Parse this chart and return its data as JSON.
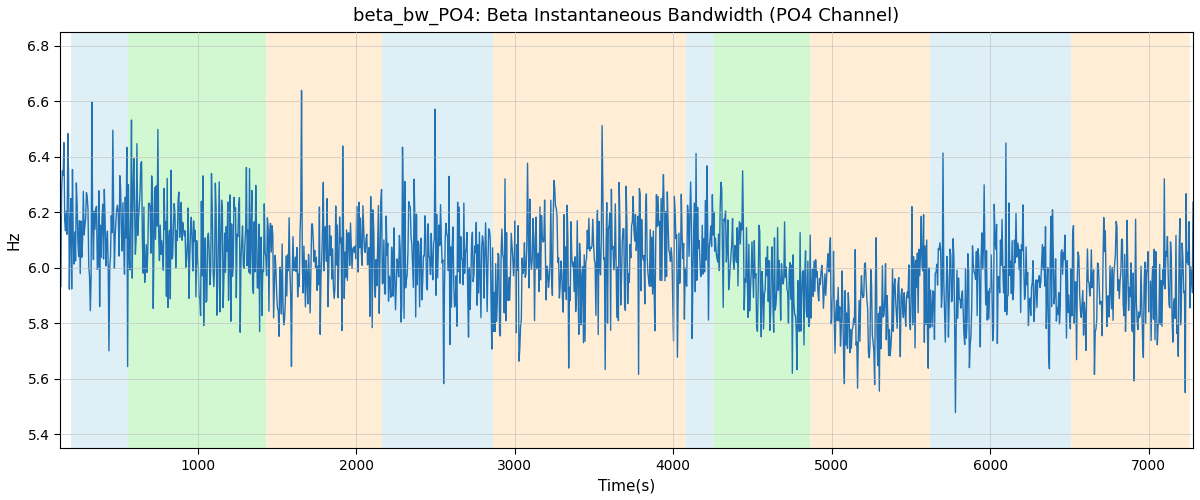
{
  "title": "beta_bw_PO4: Beta Instantaneous Bandwidth (PO4 Channel)",
  "xlabel": "Time(s)",
  "ylabel": "Hz",
  "xlim": [
    130,
    7280
  ],
  "ylim": [
    5.35,
    6.85
  ],
  "yticks": [
    5.4,
    5.6,
    5.8,
    6.0,
    6.2,
    6.4,
    6.6,
    6.8
  ],
  "xticks": [
    1000,
    2000,
    3000,
    4000,
    5000,
    6000,
    7000
  ],
  "line_color": "#2171b5",
  "line_width": 1.0,
  "grid_color": "#bbbbbb",
  "colored_regions": [
    {
      "xmin": 200,
      "xmax": 560,
      "color": "#add8e6",
      "alpha": 0.4
    },
    {
      "xmin": 560,
      "xmax": 1430,
      "color": "#90ee90",
      "alpha": 0.4
    },
    {
      "xmin": 1430,
      "xmax": 2160,
      "color": "#ffdead",
      "alpha": 0.5
    },
    {
      "xmin": 2160,
      "xmax": 2860,
      "color": "#add8e6",
      "alpha": 0.4
    },
    {
      "xmin": 2860,
      "xmax": 4080,
      "color": "#ffdead",
      "alpha": 0.5
    },
    {
      "xmin": 4080,
      "xmax": 4260,
      "color": "#add8e6",
      "alpha": 0.4
    },
    {
      "xmin": 4260,
      "xmax": 4860,
      "color": "#90ee90",
      "alpha": 0.4
    },
    {
      "xmin": 4860,
      "xmax": 5150,
      "color": "#ffdead",
      "alpha": 0.5
    },
    {
      "xmin": 5150,
      "xmax": 5620,
      "color": "#ffdead",
      "alpha": 0.5
    },
    {
      "xmin": 5620,
      "xmax": 6510,
      "color": "#add8e6",
      "alpha": 0.4
    },
    {
      "xmin": 6510,
      "xmax": 7260,
      "color": "#ffdead",
      "alpha": 0.5
    }
  ],
  "seed": 17,
  "n_points": 1460,
  "time_start": 130,
  "time_end": 7280
}
